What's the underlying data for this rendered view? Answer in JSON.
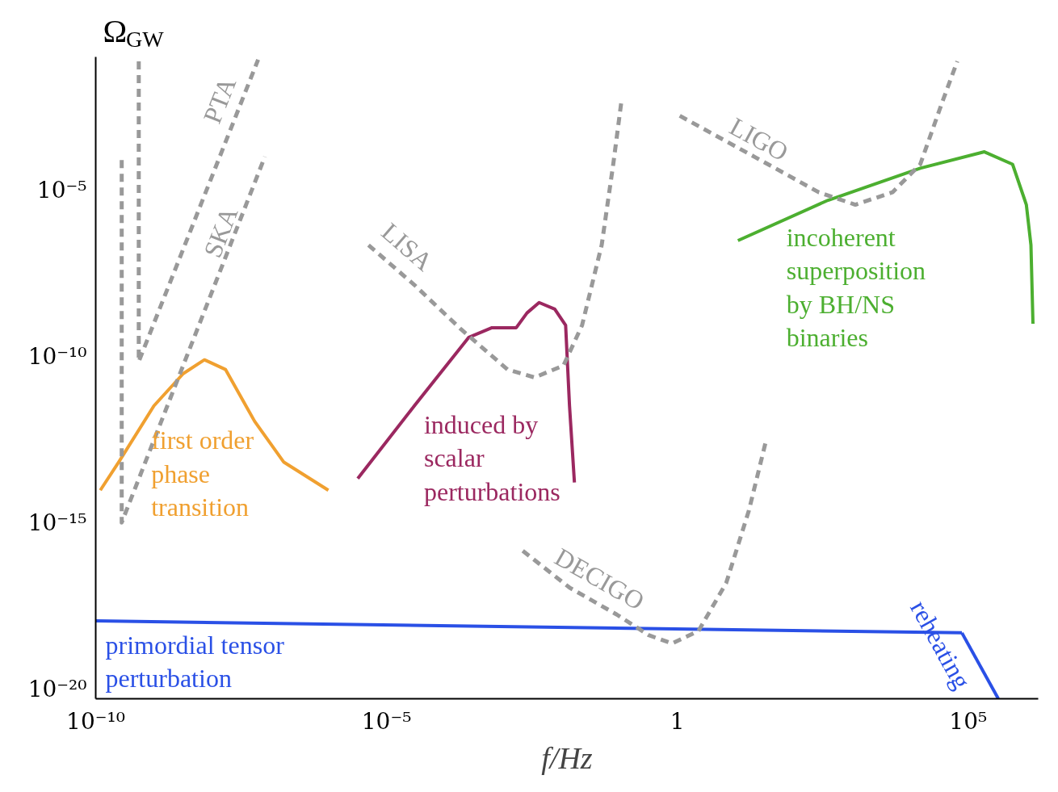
{
  "chart_data": {
    "type": "line",
    "log": "xy",
    "xlabel": "f/Hz",
    "ylabel": "Ω$_{GW}$",
    "grid": false,
    "xlim": [
      1e-10,
      1600000.0
    ],
    "ylim": [
      5e-21,
      0.1
    ],
    "xticks": [
      {
        "value": 1e-10,
        "label": "10⁻¹⁰"
      },
      {
        "value": 1e-05,
        "label": "10⁻⁵"
      },
      1,
      {
        "value": 100000.0,
        "label": "10⁵"
      }
    ],
    "yticks": [
      {
        "value": 1e-05,
        "label": "10⁻⁵"
      },
      {
        "value": 1e-10,
        "label": "10⁻¹⁰"
      },
      {
        "value": 1e-15,
        "label": "10⁻¹⁵"
      },
      {
        "value": 1e-20,
        "label": "10⁻²⁰"
      }
    ],
    "series": [
      {
        "name": "first order\nphase\ntransition",
        "color": "#f0a030",
        "line_style": "solid",
        "x": [
          1.2e-10,
          2.5e-10,
          1e-09,
          3.2e-09,
          7.4e-09,
          1.7e-08,
          5.4e-08,
          1.7e-07,
          1e-06
        ],
        "values": [
          9.3e-15,
          6.6e-14,
          3.2e-12,
          3e-11,
          7.8e-11,
          4e-11,
          1.1e-12,
          6.6e-14,
          9.3e-15
        ]
      },
      {
        "name": "induced by\nscalar\nperturbations",
        "color": "#9b2860",
        "line_style": "solid",
        "x": [
          3.2e-06,
          3e-05,
          0.00026,
          0.00065,
          0.0017,
          0.0026,
          0.0042,
          0.0078,
          0.012,
          0.014,
          0.017
        ],
        "values": [
          2.1e-14,
          3.2e-12,
          3.7e-10,
          7.2e-10,
          7.2e-10,
          2e-09,
          4.1e-09,
          2.6e-09,
          8.5e-10,
          3.2e-12,
          1.6e-14
        ]
      },
      {
        "name": "incoherent\nsuperposition\nby BH/NS\nbinaries",
        "color": "#4caf30",
        "line_style": "solid",
        "x": [
          11,
          390,
          15000.0,
          190000.0,
          580000.0,
          1000000.0,
          1200000.0,
          1300000.0
        ],
        "values": [
          3e-07,
          4.9e-06,
          4.5e-05,
          0.00014,
          5.9e-05,
          3.6e-06,
          2.2e-07,
          9.5e-10
        ]
      },
      {
        "name": "primordial tensor\nperturbation",
        "color": "#2a50e6",
        "line_style": "solid",
        "x": [
          1e-10,
          78000.0
        ],
        "values": [
          1.1e-18,
          4.8e-19
        ]
      },
      {
        "name": "PTA",
        "color": "#999999",
        "line_style": "dashed",
        "x": [
          5.5e-10,
          5.5e-10,
          6.2e-08
        ],
        "values": [
          0.074,
          6.9e-11,
          0.083
        ]
      },
      {
        "name": "SKA",
        "color": "#999999",
        "line_style": "dashed",
        "x": [
          2.8e-10,
          2.8e-10,
          8.1e-08
        ],
        "values": [
          7.9e-05,
          1e-15,
          0.0001
        ]
      },
      {
        "name": "LISA",
        "color": "#999999",
        "line_style": "dashed",
        "x": [
          4.9e-06,
          3e-05,
          0.00019,
          0.0012,
          0.0035,
          0.011,
          0.023,
          0.05,
          0.079,
          0.11
        ],
        "values": [
          2.2e-07,
          1.4e-08,
          6.5e-10,
          4e-11,
          2.3e-11,
          5.2e-11,
          8.5e-10,
          2.2e-07,
          5.9e-05,
          0.0051
        ]
      },
      {
        "name": "LIGO",
        "color": "#999999",
        "line_style": "dashed",
        "x": [
          1.1,
          21,
          270,
          1150,
          5000,
          15000.0,
          37000.0,
          65000.0
        ],
        "values": [
          0.0017,
          0.0001,
          8.5e-06,
          3.6e-06,
          8.5e-06,
          5.9e-05,
          0.0051,
          0.074
        ]
      },
      {
        "name": "DECIGO",
        "color": "#999999",
        "line_style": "dashed",
        "x": [
          0.0022,
          0.014,
          0.091,
          0.32,
          0.81,
          2.3,
          6.9,
          17,
          33
        ],
        "values": [
          1.4e-16,
          1.1e-17,
          1.7e-18,
          4.1e-19,
          2.3e-19,
          5.4e-19,
          1.5e-17,
          2.3e-15,
          2.6e-13
        ]
      },
      {
        "name": "reheating",
        "color": "#2a50e6",
        "line_style": "solid",
        "x": [
          78000.0,
          330000.0
        ],
        "values": [
          4.8e-19,
          5e-21
        ]
      }
    ]
  }
}
